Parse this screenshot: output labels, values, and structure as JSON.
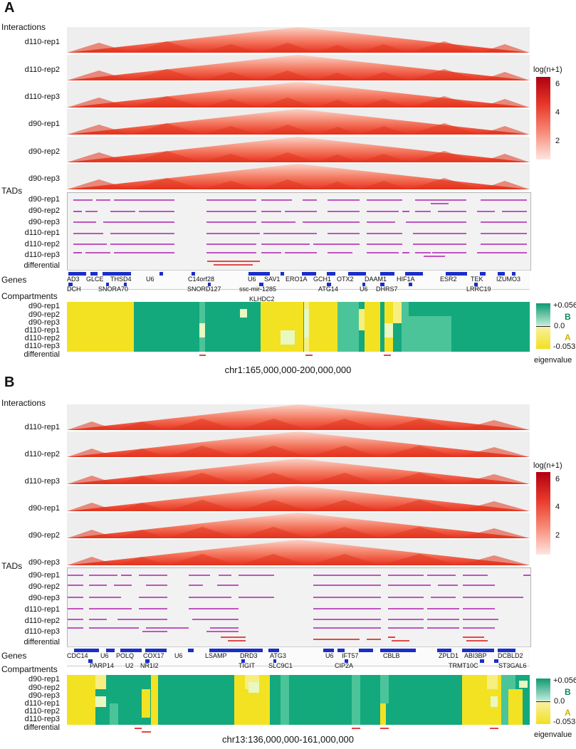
{
  "panels": [
    {
      "letter": "A",
      "interactions_title": "Interactions",
      "hic_tracks": [
        "d110-rep1",
        "d110-rep2",
        "d110-rep3",
        "d90-rep1",
        "d90-rep2",
        "d90-rep3"
      ],
      "tads_title": "TADs",
      "tad_tracks": [
        "d90-rep1",
        "d90-rep2",
        "d90-rep3",
        "d110-rep1",
        "d110-rep2",
        "d110-rep3",
        "differential"
      ],
      "genes_title": "Genes",
      "genes_top": [
        "AD3",
        "GLCE",
        "THSD4",
        "U6",
        "C14orf28",
        "U6",
        "SAV1",
        "ERO1A",
        "GCH1",
        "OTX2",
        "DAAM1",
        "HIF1A",
        "ESR2",
        "TEK",
        "IZUMO3"
      ],
      "genes_bottom": [
        "DCH",
        "SNORA70",
        "SNORD127",
        "ssc-mir-1285",
        "ATG14",
        "U6",
        "DHRS7",
        "LRRC19"
      ],
      "genes_extra": [
        "KLHDC2"
      ],
      "compartments_title": "Compartments",
      "comp_tracks": [
        "d90-rep1",
        "d90-rep2",
        "d90-rep3",
        "d110-rep1",
        "d110-rep2",
        "d110-rep3",
        "differential"
      ],
      "coordinate": "chr1:165,000,000-200,000,000",
      "colorbar": {
        "title": "log(n+1)",
        "ticks": [
          "6",
          "4",
          "2"
        ]
      },
      "eigen_legend": {
        "max": "+0.056",
        "B": "B",
        "mid": "0.0",
        "A": "A",
        "min": "-0.053",
        "title": "eigenvalue"
      }
    },
    {
      "letter": "B",
      "interactions_title": "Interactions",
      "hic_tracks": [
        "d110-rep1",
        "d110-rep2",
        "d110-rep3",
        "d90-rep1",
        "d90-rep2",
        "d90-rep3"
      ],
      "tads_title": "TADs",
      "tad_tracks": [
        "d90-rep1",
        "d90-rep2",
        "d90-rep3",
        "d110-rep1",
        "d110-rep2",
        "d110-rep3",
        "differential"
      ],
      "genes_title": "Genes",
      "genes_top": [
        "CDC14",
        "U6",
        "POLQ",
        "COX17",
        "U6",
        "LSAMP",
        "DRD3",
        "ATG3",
        "U6",
        "IFT57",
        "CBLB",
        "ZPLD1",
        "ABI3BP",
        "DCBLD2"
      ],
      "genes_bottom": [
        "PARP14",
        "U2",
        "NR1I2",
        "TIGIT",
        "SLC9C1",
        "CIP2A",
        "TRMT10C",
        "ST3GAL6"
      ],
      "genes_extra": [],
      "compartments_title": "Compartments",
      "comp_tracks": [
        "d90-rep1",
        "d90-rep2",
        "d90-rep3",
        "d110-rep1",
        "d110-rep2",
        "d110-rep3",
        "differential"
      ],
      "coordinate": "chr13:136,000,000-161,000,000",
      "colorbar": {
        "title": "log(n+1)",
        "ticks": [
          "6",
          "4",
          "2"
        ]
      },
      "eigen_legend": {
        "max": "+0.056",
        "B": "B",
        "mid": "0.0",
        "A": "A",
        "min": "-0.053",
        "title": "eigenvalue"
      }
    }
  ],
  "colors": {
    "tad": "#b020b0",
    "diff": "#e01010",
    "gene": "#1a2ec8",
    "compB": "#12a57a",
    "compA": "#f2e020"
  }
}
